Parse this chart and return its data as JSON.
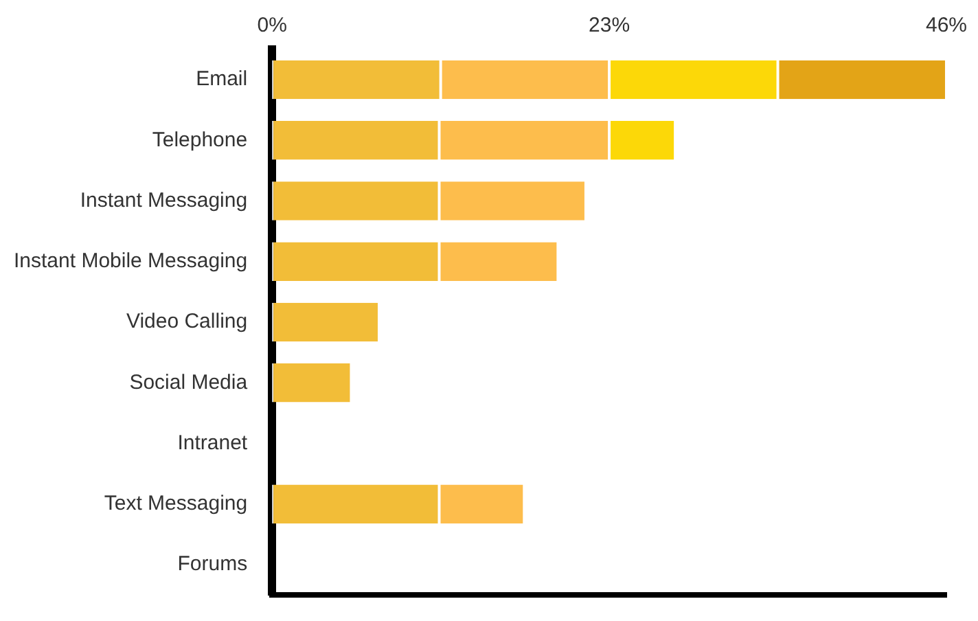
{
  "chart_data": {
    "type": "bar",
    "orientation": "horizontal",
    "stacked": true,
    "categories": [
      "Email",
      "Telephone",
      "Instant Messaging",
      "Instant Mobile Messaging",
      "Video Calling",
      "Social Media",
      "Intranet",
      "Text Messaging",
      "Forums"
    ],
    "series": [
      {
        "color": "#f2bd38",
        "values": [
          11.5,
          11.4,
          11.4,
          11.4,
          7.3,
          5.4,
          0,
          11.4,
          0
        ]
      },
      {
        "color": "#fdbd4c",
        "values": [
          11.5,
          11.6,
          10.0,
          8.1,
          0,
          0,
          0,
          5.8,
          0
        ]
      },
      {
        "color": "#fcd808",
        "values": [
          11.5,
          4.5,
          0,
          0,
          0,
          0,
          0,
          0,
          0
        ]
      },
      {
        "color": "#e3a417",
        "values": [
          11.5,
          0,
          0,
          0,
          0,
          0,
          0,
          0,
          0
        ]
      }
    ],
    "xlim": [
      0,
      46
    ],
    "xticks": [
      {
        "value": 0,
        "label": "0%"
      },
      {
        "value": 23,
        "label": "23%"
      },
      {
        "value": 46,
        "label": "46%"
      }
    ],
    "grid": false,
    "legend": false
  }
}
